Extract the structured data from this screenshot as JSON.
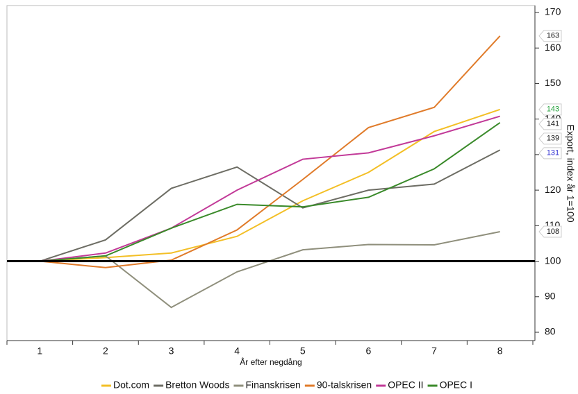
{
  "chart_data": {
    "type": "line",
    "x_label": "År efter negdång",
    "y_label": "Export, index år 1=100",
    "categories": [
      "1",
      "2",
      "3",
      "4",
      "5",
      "6",
      "7",
      "8"
    ],
    "ylim": [
      80,
      170
    ],
    "yticks": [
      80,
      90,
      100,
      110,
      120,
      130,
      140,
      150,
      160,
      170
    ],
    "reference_line": 100,
    "series": [
      {
        "name": "Dot.com",
        "color": "#f3bf26",
        "label_color": "#22a03a",
        "values": [
          100,
          101,
          102.3,
          107,
          117,
          125,
          136.5,
          142.7
        ],
        "value_labels": [
          null,
          null,
          null,
          null,
          null,
          null,
          null,
          "143"
        ]
      },
      {
        "name": "Bretton Woods",
        "color": "#6d6d64",
        "label_color": "#2a2ad0",
        "values": [
          100,
          106,
          120.5,
          126.5,
          115,
          120,
          121.7,
          131.3
        ],
        "value_labels": [
          null,
          null,
          null,
          null,
          null,
          null,
          null,
          "131"
        ]
      },
      {
        "name": "Finanskrisen",
        "color": "#8f8f7c",
        "label_color": "#111111",
        "values": [
          100,
          101.5,
          87,
          97,
          103.2,
          104.7,
          104.6,
          108.3
        ],
        "value_labels": [
          null,
          null,
          null,
          null,
          null,
          null,
          null,
          "108"
        ]
      },
      {
        "name": "90-talskrisen",
        "color": "#e07b2a",
        "label_color": "#111111",
        "values": [
          100,
          98.2,
          100.3,
          108.8,
          123,
          137.6,
          143.3,
          163.4
        ],
        "value_labels": [
          null,
          null,
          null,
          null,
          null,
          null,
          null,
          "163"
        ]
      },
      {
        "name": "OPEC II",
        "color": "#c23a98",
        "label_color": "#111111",
        "values": [
          100,
          102.3,
          109.3,
          120,
          128.7,
          130.5,
          135.3,
          140.8
        ],
        "value_labels": [
          null,
          null,
          null,
          null,
          null,
          null,
          null,
          "141"
        ]
      },
      {
        "name": "OPEC I",
        "color": "#3a8a2a",
        "label_color": "#111111",
        "values": [
          100,
          101.5,
          109.3,
          116,
          115.3,
          118,
          126,
          139
        ],
        "value_labels": [
          null,
          null,
          null,
          null,
          null,
          null,
          null,
          "139"
        ]
      }
    ]
  }
}
